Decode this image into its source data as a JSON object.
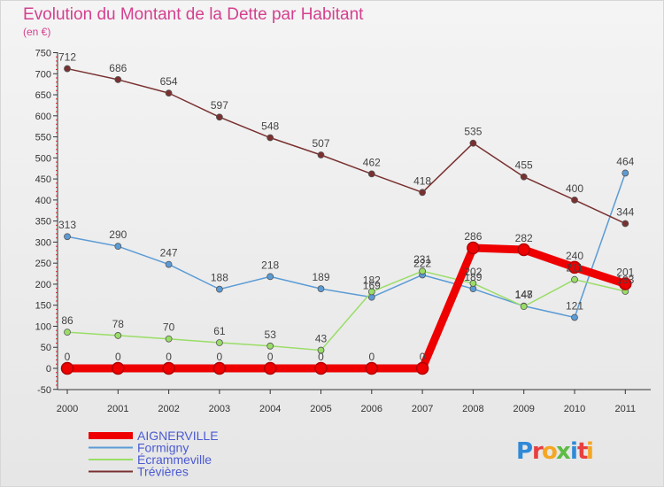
{
  "chart_data": {
    "type": "line",
    "title": "Evolution du Montant de la Dette par Habitant",
    "subtitle": "(en €)",
    "xlabel": "",
    "ylabel": "",
    "x": [
      "2000",
      "2001",
      "2002",
      "2003",
      "2004",
      "2005",
      "2006",
      "2007",
      "2008",
      "2009",
      "2010",
      "2011"
    ],
    "ylim": [
      -50,
      750
    ],
    "yticks": [
      -50,
      0,
      50,
      100,
      150,
      200,
      250,
      300,
      350,
      400,
      450,
      500,
      550,
      600,
      650,
      700,
      750
    ],
    "grid": false,
    "legend": "bottom-left",
    "series": [
      {
        "name": "AIGNERVILLE",
        "color": "#ee0000",
        "emphasis": true,
        "values": [
          0,
          0,
          0,
          0,
          0,
          0,
          0,
          0,
          286,
          282,
          240,
          201
        ]
      },
      {
        "name": "Formigny",
        "color": "#5b9bd5",
        "values": [
          313,
          290,
          247,
          188,
          218,
          189,
          169,
          222,
          189,
          148,
          121,
          464
        ]
      },
      {
        "name": "Écrammeville",
        "color": "#99dd66",
        "values": [
          86,
          78,
          70,
          61,
          53,
          43,
          182,
          231,
          202,
          147,
          211,
          183
        ]
      },
      {
        "name": "Trévières",
        "color": "#7a3030",
        "values": [
          712,
          686,
          654,
          597,
          548,
          507,
          462,
          418,
          535,
          455,
          400,
          344
        ]
      }
    ]
  },
  "logo": {
    "text": "Proxiti",
    "letters": [
      "P",
      "r",
      "o",
      "x",
      "i",
      "t",
      "i"
    ],
    "colors": [
      "#2f8ad8",
      "#e83f3f",
      "#f5a623",
      "#5dbb46",
      "#2f8ad8",
      "#e83f3f",
      "#f5a623"
    ]
  }
}
